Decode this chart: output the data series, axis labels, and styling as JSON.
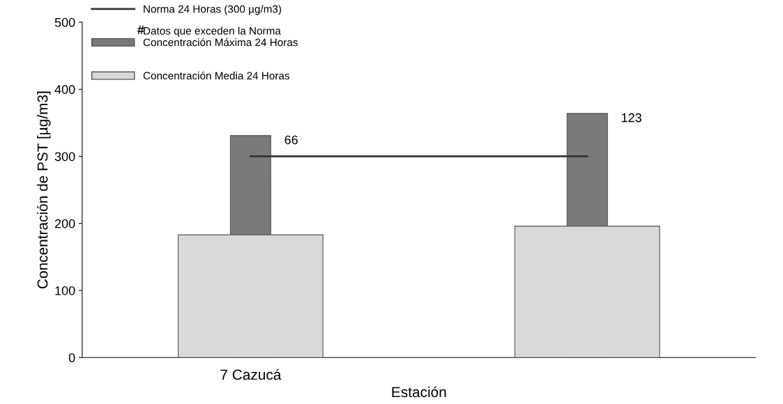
{
  "chart_data": {
    "type": "bar",
    "xlabel": "Estación",
    "ylabel": "Concentración de PST [µg/m3]",
    "categories": [
      "7 Cazucá",
      null
    ],
    "series": [
      {
        "name": "Concentración Máxima 24 Horas",
        "color": "#7a7a7a",
        "values": [
          331,
          364
        ]
      },
      {
        "name": "Concentración Media 24 Horas",
        "color": "#d9d9d9",
        "values": [
          183,
          196
        ]
      },
      {
        "name": "Norma 24 Horas (300 µg/m3)",
        "type": "line",
        "color": "#333333",
        "values": [
          300,
          300
        ]
      }
    ],
    "ylim": [
      0,
      500
    ],
    "yticks": [
      0,
      100,
      200,
      300,
      400,
      500
    ],
    "grid": false,
    "legend": "top left",
    "annotations": [
      "#",
      "Datos que exceden la Norma",
      "66",
      "123"
    ]
  }
}
